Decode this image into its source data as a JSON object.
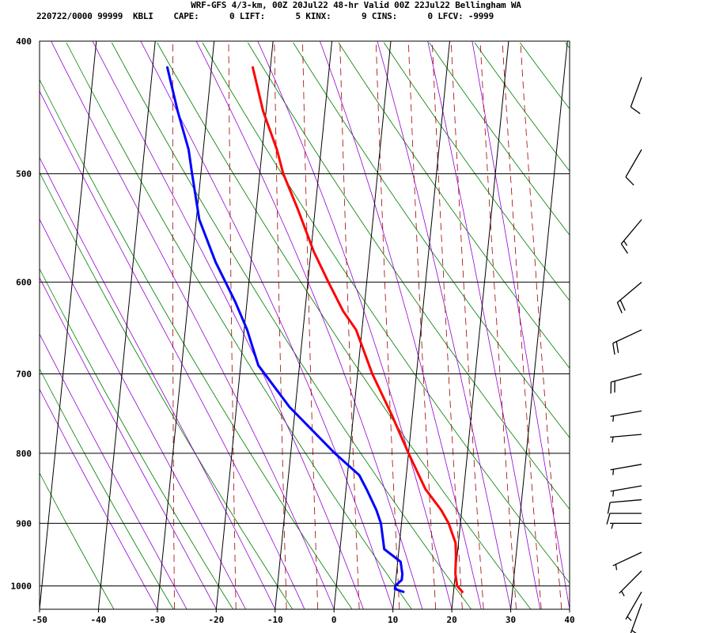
{
  "chart_data": {
    "type": "skew-t sounding",
    "title": "WRF-GFS 4/3-km, 00Z 20Jul22 48-hr Valid 00Z 22Jul22 Bellingham WA",
    "subtitle": "220722/0000 99999  KBLI    CAPE:      0 LIFT:      5 KINX:      9 CINS:      0 LFCV: -9999",
    "x_axis": {
      "label": "",
      "ticks": [
        -50,
        -40,
        -30,
        -20,
        -10,
        0,
        10,
        20,
        30,
        40
      ],
      "range": [
        -50,
        40
      ],
      "units": "temperature (°C)"
    },
    "y_axis": {
      "label": "",
      "ticks": [
        400,
        500,
        600,
        700,
        800,
        900,
        1000
      ],
      "scale": "log",
      "range": [
        1040,
        400
      ],
      "units": "pressure (hPa)"
    },
    "grid": true,
    "series": [
      {
        "role": "temperature",
        "color": "#ff0000",
        "points": [
          [
            418,
            -23.0
          ],
          [
            450,
            -20.5
          ],
          [
            480,
            -17.5
          ],
          [
            500,
            -16.0
          ],
          [
            530,
            -13.0
          ],
          [
            570,
            -9.5
          ],
          [
            600,
            -6.5
          ],
          [
            630,
            -3.5
          ],
          [
            650,
            -1.0
          ],
          [
            700,
            2.5
          ],
          [
            750,
            6.5
          ],
          [
            800,
            10.0
          ],
          [
            850,
            13.5
          ],
          [
            880,
            16.5
          ],
          [
            900,
            18.0
          ],
          [
            930,
            19.5
          ],
          [
            950,
            19.8
          ],
          [
            980,
            20.0
          ],
          [
            1000,
            20.5
          ],
          [
            1010,
            21.5
          ]
        ]
      },
      {
        "role": "dewpoint",
        "color": "#0000ff",
        "points": [
          [
            418,
            -37.5
          ],
          [
            450,
            -35.0
          ],
          [
            480,
            -32.5
          ],
          [
            500,
            -31.5
          ],
          [
            540,
            -29.5
          ],
          [
            580,
            -26.0
          ],
          [
            620,
            -22.0
          ],
          [
            650,
            -19.5
          ],
          [
            690,
            -17.0
          ],
          [
            740,
            -11.0
          ],
          [
            800,
            -2.5
          ],
          [
            830,
            2.0
          ],
          [
            850,
            3.5
          ],
          [
            880,
            5.5
          ],
          [
            900,
            6.5
          ],
          [
            940,
            7.5
          ],
          [
            960,
            10.5
          ],
          [
            980,
            11.0
          ],
          [
            990,
            11.0
          ],
          [
            1000,
            10.0
          ],
          [
            1005,
            10.0
          ],
          [
            1010,
            11.5
          ]
        ]
      }
    ],
    "background_lines": {
      "isotherms_color": "#000000",
      "dry_adiabats_color": "#008000",
      "moist_adiabats_color": "#9400d3",
      "mixing_ratio_color": "#a00000"
    },
    "wind_barbs": [
      {
        "p": 425,
        "dir": 20,
        "spd": 10
      },
      {
        "p": 480,
        "dir": 30,
        "spd": 10
      },
      {
        "p": 540,
        "dir": 40,
        "spd": 15
      },
      {
        "p": 600,
        "dir": 50,
        "spd": 20
      },
      {
        "p": 650,
        "dir": 65,
        "spd": 20
      },
      {
        "p": 700,
        "dir": 75,
        "spd": 20
      },
      {
        "p": 745,
        "dir": 80,
        "spd": 5
      },
      {
        "p": 775,
        "dir": 85,
        "spd": 5
      },
      {
        "p": 815,
        "dir": 80,
        "spd": 5
      },
      {
        "p": 845,
        "dir": 80,
        "spd": 5
      },
      {
        "p": 865,
        "dir": 85,
        "spd": 10
      },
      {
        "p": 885,
        "dir": 90,
        "spd": 10
      },
      {
        "p": 900,
        "dir": 90,
        "spd": 5
      },
      {
        "p": 945,
        "dir": 65,
        "spd": 5
      },
      {
        "p": 975,
        "dir": 45,
        "spd": 5
      },
      {
        "p": 1010,
        "dir": 30,
        "spd": 5
      },
      {
        "p": 1030,
        "dir": 20,
        "spd": 5
      }
    ]
  }
}
